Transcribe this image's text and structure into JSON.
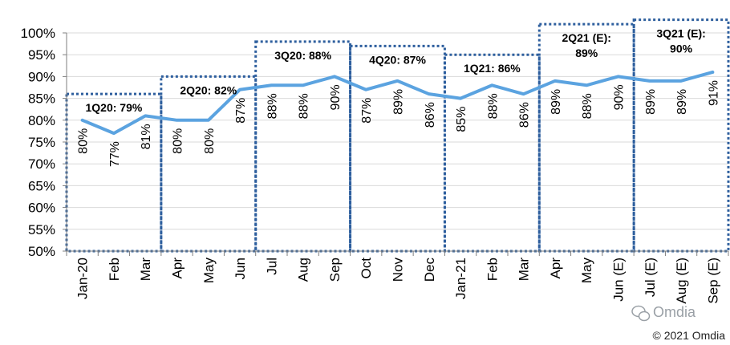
{
  "chart_data": {
    "type": "line",
    "categories": [
      "Jan-20",
      "Feb",
      "Mar",
      "Apr",
      "May",
      "Jun",
      "Jul",
      "Aug",
      "Sep",
      "Oct",
      "Nov",
      "Dec",
      "Jan-21",
      "Feb",
      "Mar",
      "Apr",
      "May",
      "Jun (E)",
      "Jul (E)",
      "Aug (E)",
      "Sep (E)"
    ],
    "series": [
      {
        "values": [
          80,
          77,
          81,
          80,
          80,
          87,
          88,
          88,
          90,
          87,
          89,
          86,
          85,
          88,
          86,
          89,
          88,
          90,
          89,
          89,
          91
        ],
        "labels": [
          "80%",
          "77%",
          "81%",
          "80%",
          "80%",
          "87%",
          "88%",
          "88%",
          "90%",
          "87%",
          "89%",
          "86%",
          "85%",
          "88%",
          "86%",
          "89%",
          "88%",
          "90%",
          "89%",
          "89%",
          "91%"
        ]
      }
    ],
    "ylim": [
      50,
      100
    ],
    "yticks": [
      50,
      55,
      60,
      65,
      70,
      75,
      80,
      85,
      90,
      95,
      100
    ],
    "ytick_labels": [
      "50%",
      "55%",
      "60%",
      "65%",
      "70%",
      "75%",
      "80%",
      "85%",
      "90%",
      "95%",
      "100%"
    ],
    "line_color": "#5ba3e0",
    "box_color": "#2e5f9e",
    "quarters": [
      {
        "label_lines": [
          "1Q20: 79%"
        ],
        "start": 0,
        "end": 2,
        "value": 86
      },
      {
        "label_lines": [
          "2Q20: 82%"
        ],
        "start": 3,
        "end": 5,
        "value": 90
      },
      {
        "label_lines": [
          "3Q20: 88%"
        ],
        "start": 6,
        "end": 8,
        "value": 98
      },
      {
        "label_lines": [
          "4Q20: 87%"
        ],
        "start": 9,
        "end": 11,
        "value": 97
      },
      {
        "label_lines": [
          "1Q21: 86%"
        ],
        "start": 12,
        "end": 14,
        "value": 95
      },
      {
        "label_lines": [
          "2Q21 (E):",
          "89%"
        ],
        "start": 15,
        "end": 17,
        "value": 102
      },
      {
        "label_lines": [
          "3Q21 (E):",
          "90%"
        ],
        "start": 18,
        "end": 20,
        "value": 103
      }
    ]
  },
  "footer": {
    "watermark": "Omdia",
    "copyright": "© 2021 Omdia"
  }
}
